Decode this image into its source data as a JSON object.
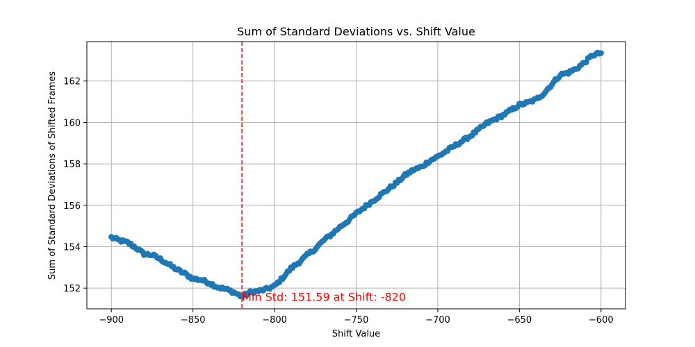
{
  "chart_data": {
    "type": "scatter",
    "title": "Sum of Standard Deviations vs. Shift Value",
    "xlabel": "Shift Value",
    "ylabel": "Sum of Standard Deviations of Shifted Frames",
    "xlim": [
      -915,
      -585
    ],
    "ylim": [
      151.0,
      163.9
    ],
    "xticks": [
      -900,
      -850,
      -800,
      -750,
      -700,
      -650,
      -600
    ],
    "yticks": [
      152,
      154,
      156,
      158,
      160,
      162
    ],
    "xtick_labels": [
      "−900",
      "−850",
      "−800",
      "−750",
      "−700",
      "−650",
      "−600"
    ],
    "ytick_labels": [
      "152",
      "154",
      "156",
      "158",
      "160",
      "162"
    ],
    "grid": true,
    "series_color": "#1f77b4",
    "x_range": [
      -900,
      -600
    ],
    "anchors": [
      [
        -900,
        154.45
      ],
      [
        -895,
        154.3
      ],
      [
        -890,
        154.2
      ],
      [
        -885,
        153.95
      ],
      [
        -880,
        153.65
      ],
      [
        -875,
        153.6
      ],
      [
        -870,
        153.4
      ],
      [
        -865,
        153.15
      ],
      [
        -860,
        152.9
      ],
      [
        -855,
        152.7
      ],
      [
        -850,
        152.45
      ],
      [
        -845,
        152.4
      ],
      [
        -840,
        152.25
      ],
      [
        -835,
        152.05
      ],
      [
        -830,
        151.95
      ],
      [
        -825,
        151.8
      ],
      [
        -820,
        151.59
      ],
      [
        -815,
        151.8
      ],
      [
        -810,
        151.85
      ],
      [
        -805,
        151.95
      ],
      [
        -800,
        152.1
      ],
      [
        -795,
        152.5
      ],
      [
        -790,
        152.95
      ],
      [
        -785,
        153.25
      ],
      [
        -780,
        153.6
      ],
      [
        -775,
        153.9
      ],
      [
        -770,
        154.3
      ],
      [
        -765,
        154.6
      ],
      [
        -760,
        154.95
      ],
      [
        -755,
        155.25
      ],
      [
        -750,
        155.6
      ],
      [
        -745,
        155.9
      ],
      [
        -740,
        156.2
      ],
      [
        -735,
        156.5
      ],
      [
        -730,
        156.8
      ],
      [
        -725,
        157.1
      ],
      [
        -720,
        157.45
      ],
      [
        -715,
        157.7
      ],
      [
        -710,
        157.85
      ],
      [
        -705,
        158.15
      ],
      [
        -700,
        158.35
      ],
      [
        -695,
        158.6
      ],
      [
        -690,
        158.85
      ],
      [
        -685,
        159.1
      ],
      [
        -680,
        159.35
      ],
      [
        -675,
        159.65
      ],
      [
        -670,
        159.95
      ],
      [
        -665,
        160.15
      ],
      [
        -660,
        160.35
      ],
      [
        -655,
        160.6
      ],
      [
        -650,
        160.85
      ],
      [
        -645,
        160.95
      ],
      [
        -640,
        161.1
      ],
      [
        -635,
        161.4
      ],
      [
        -630,
        161.85
      ],
      [
        -625,
        162.3
      ],
      [
        -620,
        162.4
      ],
      [
        -615,
        162.6
      ],
      [
        -610,
        162.9
      ],
      [
        -605,
        163.25
      ],
      [
        -600,
        163.35
      ]
    ],
    "vline": {
      "x": -820,
      "color": "#d62728",
      "style": "dashed"
    },
    "annotation": {
      "text": "Min Std: 151.59 at Shift: -820",
      "x": -820,
      "y": 151.59,
      "color": "#ff0000"
    }
  }
}
